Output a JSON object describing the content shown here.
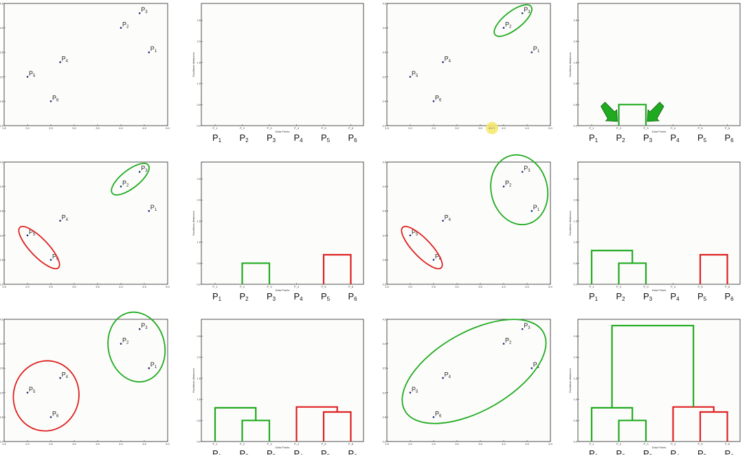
{
  "chart_data": {
    "type": "scatter+dendrogram",
    "points": [
      {
        "name": "P1",
        "x": 4.6,
        "y": 3.5
      },
      {
        "name": "P2",
        "x": 4.0,
        "y": 4.0
      },
      {
        "name": "P3",
        "x": 4.4,
        "y": 4.3
      },
      {
        "name": "P4",
        "x": 2.7,
        "y": 3.3
      },
      {
        "name": "P5",
        "x": 2.0,
        "y": 3.0
      },
      {
        "name": "P6",
        "x": 2.5,
        "y": 2.5
      }
    ],
    "scatter": {
      "xlim": [
        1.5,
        5.0
      ],
      "ylim": [
        2.0,
        4.5
      ],
      "xticks": [
        "1.5",
        "2.0",
        "2.5",
        "3.0",
        "3.5",
        "4.0",
        "4.5",
        "5.0"
      ],
      "yticks": [
        "2.0",
        "2.5",
        "3.0",
        "3.5",
        "4.0",
        "4.5"
      ]
    },
    "dendrogram": {
      "xlabel": "Data Points",
      "ylabel": "Euclidean distances",
      "ylim": [
        0,
        2.9
      ],
      "yticks": [
        "0.0",
        "0.5",
        "1.0",
        "1.5",
        "2.0",
        "2.5"
      ],
      "leaf_ticks": [
        "P_1",
        "P_2",
        "P_3",
        "P_4",
        "P_5",
        "P_6"
      ],
      "merges": [
        {
          "left": "P2",
          "right": "P3",
          "height": 0.5,
          "color": "green"
        },
        {
          "left": "P5",
          "right": "P6",
          "height": 0.7,
          "color": "red"
        },
        {
          "left": "P1",
          "right": "P2+P3",
          "height": 0.8,
          "color": "green"
        },
        {
          "left": "P4",
          "right": "P5+P6",
          "height": 0.82,
          "color": "red"
        },
        {
          "left": "P1+P2+P3",
          "right": "P4+P5+P6",
          "height": 2.75,
          "color": "green"
        }
      ]
    },
    "steps": [
      {
        "step": 1,
        "merges_shown": 0,
        "clusters": []
      },
      {
        "step": 2,
        "merges_shown": 1,
        "clusters": [
          {
            "members": [
              "P2",
              "P3"
            ],
            "color": "green"
          }
        ],
        "arrows": true,
        "cursor": true
      },
      {
        "step": 3,
        "merges_shown": 2,
        "clusters": [
          {
            "members": [
              "P2",
              "P3"
            ],
            "color": "green"
          },
          {
            "members": [
              "P5",
              "P6"
            ],
            "color": "red"
          }
        ]
      },
      {
        "step": 4,
        "merges_shown": 3,
        "clusters": [
          {
            "members": [
              "P1",
              "P2",
              "P3"
            ],
            "color": "green"
          },
          {
            "members": [
              "P5",
              "P6"
            ],
            "color": "red"
          }
        ]
      },
      {
        "step": 5,
        "merges_shown": 4,
        "clusters": [
          {
            "members": [
              "P1",
              "P2",
              "P3"
            ],
            "color": "green"
          },
          {
            "members": [
              "P4",
              "P5",
              "P6"
            ],
            "color": "red"
          }
        ]
      },
      {
        "step": 6,
        "merges_shown": 5,
        "clusters": [
          {
            "members": [
              "P1",
              "P2",
              "P3",
              "P4",
              "P5",
              "P6"
            ],
            "color": "green"
          }
        ]
      }
    ],
    "colors": {
      "green": "#1faa1f",
      "red": "#dd1f1f",
      "point": "#1b2a7a",
      "cursor": "#f6e86a"
    }
  }
}
